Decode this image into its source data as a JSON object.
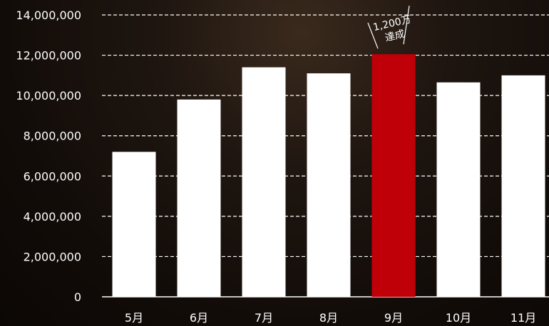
{
  "chart_data": {
    "type": "bar",
    "categories": [
      "5月",
      "6月",
      "7月",
      "8月",
      "9月",
      "10月",
      "11月"
    ],
    "values": [
      7200000,
      9800000,
      11400000,
      11100000,
      12050000,
      10650000,
      11000000
    ],
    "ylim": [
      0,
      14000000
    ],
    "yticks": [
      0,
      2000000,
      4000000,
      6000000,
      8000000,
      10000000,
      12000000,
      14000000
    ],
    "ytick_labels": [
      "0",
      "2,000,000",
      "4,000,000",
      "6,000,000",
      "8,000,000",
      "10,000,000",
      "12,000,000",
      "14,000,000"
    ],
    "grid": true,
    "highlight_index": 4,
    "annotation": {
      "category_index": 4,
      "line1": "1,200万",
      "line2": "達成"
    },
    "colors": {
      "bar": "#ffffff",
      "highlight": "#c00008",
      "grid": "#ffffff",
      "text": "#ffffff"
    }
  }
}
